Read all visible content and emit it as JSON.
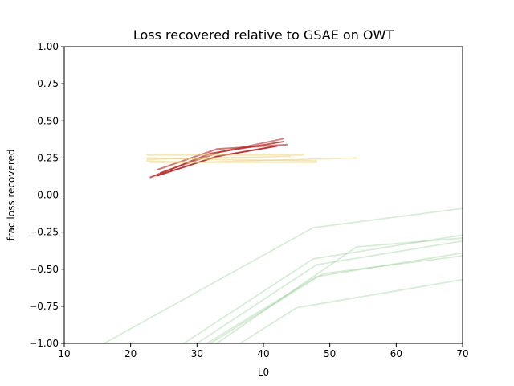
{
  "chart_data": {
    "type": "line",
    "title": "Loss recovered relative to GSAE on OWT",
    "xlabel": "L0",
    "ylabel": "frac loss recovered",
    "xlim": [
      10,
      70
    ],
    "ylim": [
      -1.0,
      1.0
    ],
    "xticks": [
      10,
      20,
      30,
      40,
      50,
      60,
      70
    ],
    "yticks": [
      -1.0,
      -0.75,
      -0.5,
      -0.25,
      0.0,
      0.25,
      0.5,
      0.75,
      1.0
    ],
    "xtick_labels": [
      "10",
      "20",
      "30",
      "40",
      "50",
      "60",
      "70"
    ],
    "ytick_labels": [
      "−1.00",
      "−0.75",
      "−0.50",
      "−0.25",
      "0.00",
      "0.25",
      "0.50",
      "0.75",
      "1.00"
    ],
    "grid": false,
    "legend": false,
    "colors": {
      "red": "#b22222",
      "yellow": "#e8d27a",
      "green": "#7fbf7f"
    },
    "series": [
      {
        "color": "red",
        "opacity": 0.9,
        "x": [
          24.0,
          33.0,
          42.0
        ],
        "y": [
          0.13,
          0.26,
          0.33
        ]
      },
      {
        "color": "red",
        "opacity": 0.75,
        "x": [
          23.0,
          32.0,
          43.0
        ],
        "y": [
          0.12,
          0.28,
          0.36
        ]
      },
      {
        "color": "red",
        "opacity": 0.6,
        "x": [
          24.0,
          33.0,
          43.5
        ],
        "y": [
          0.17,
          0.31,
          0.34
        ]
      },
      {
        "color": "red",
        "opacity": 0.55,
        "x": [
          24.5,
          33.5,
          43.0
        ],
        "y": [
          0.15,
          0.29,
          0.38
        ]
      },
      {
        "color": "yellow",
        "opacity": 0.5,
        "x": [
          22.5,
          30.0,
          54.0
        ],
        "y": [
          0.23,
          0.22,
          0.25
        ]
      },
      {
        "color": "yellow",
        "opacity": 0.5,
        "x": [
          22.5,
          34.0,
          46.0
        ],
        "y": [
          0.27,
          0.27,
          0.27
        ]
      },
      {
        "color": "yellow",
        "opacity": 0.5,
        "x": [
          22.5,
          32.0,
          48.0
        ],
        "y": [
          0.25,
          0.24,
          0.23
        ]
      },
      {
        "color": "yellow",
        "opacity": 0.5,
        "x": [
          23.0,
          36.0,
          48.0
        ],
        "y": [
          0.22,
          0.22,
          0.22
        ]
      },
      {
        "color": "yellow",
        "opacity": 0.5,
        "x": [
          22.5,
          31.0,
          44.0
        ],
        "y": [
          0.24,
          0.25,
          0.26
        ]
      },
      {
        "color": "green",
        "opacity": 0.3,
        "x": [
          16.0,
          47.5,
          70.0
        ],
        "y": [
          -1.0,
          -0.22,
          -0.09
        ]
      },
      {
        "color": "green",
        "opacity": 0.3,
        "x": [
          28.0,
          47.5,
          70.0
        ],
        "y": [
          -1.0,
          -0.43,
          -0.27
        ]
      },
      {
        "color": "green",
        "opacity": 0.3,
        "x": [
          30.0,
          48.0,
          70.0
        ],
        "y": [
          -1.0,
          -0.47,
          -0.31
        ]
      },
      {
        "color": "green",
        "opacity": 0.3,
        "x": [
          31.5,
          48.0,
          70.0
        ],
        "y": [
          -1.0,
          -0.55,
          -0.39
        ]
      },
      {
        "color": "green",
        "opacity": 0.3,
        "x": [
          33.0,
          54.0,
          70.0
        ],
        "y": [
          -1.0,
          -0.35,
          -0.29
        ]
      },
      {
        "color": "green",
        "opacity": 0.3,
        "x": [
          32.0,
          49.0,
          70.0
        ],
        "y": [
          -1.0,
          -0.53,
          -0.41
        ]
      },
      {
        "color": "green",
        "opacity": 0.3,
        "x": [
          36.5,
          45.0,
          70.0
        ],
        "y": [
          -1.0,
          -0.76,
          -0.57
        ]
      }
    ]
  }
}
